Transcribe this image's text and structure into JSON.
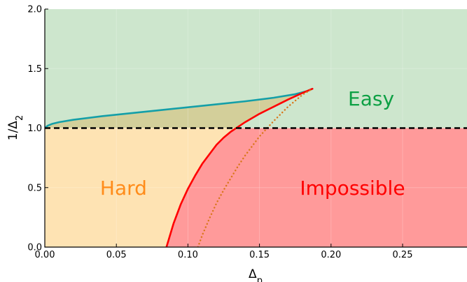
{
  "chart_data": {
    "type": "area",
    "title": "",
    "xlabel": "Δ",
    "xlabel_sub": "p",
    "ylabel": "1/Δ",
    "ylabel_sub": "2",
    "xlim": [
      0.0,
      0.295
    ],
    "ylim": [
      0.0,
      2.0
    ],
    "grid": true,
    "x_ticks": [
      0.0,
      0.05,
      0.1,
      0.15,
      0.2,
      0.25
    ],
    "x_tick_labels": [
      "0.00",
      "0.05",
      "0.10",
      "0.15",
      "0.20",
      "0.25"
    ],
    "y_ticks": [
      0.0,
      0.5,
      1.0,
      1.5,
      2.0
    ],
    "y_tick_labels": [
      "0.0",
      "0.5",
      "1.0",
      "1.5",
      "2.0"
    ],
    "regions": [
      {
        "name": "Easy",
        "color": "#0da044",
        "fill": "#cde6cd"
      },
      {
        "name": "Hard",
        "color": "#ff8c1a",
        "fill": "#fee3b3"
      },
      {
        "name": "Impossible",
        "color": "#ff0000",
        "fill": "#ff9a9a"
      }
    ],
    "overlap_fill": "#d3cf9a",
    "threshold_line": {
      "y": 1.0,
      "style": "dashed",
      "color": "#000000"
    },
    "series": [
      {
        "style": "solid",
        "color": "#149fa8",
        "x": [
          0.0,
          0.002,
          0.005,
          0.01,
          0.02,
          0.04,
          0.06,
          0.08,
          0.1,
          0.12,
          0.14,
          0.16,
          0.175,
          0.183,
          0.187
        ],
        "y": [
          1.0,
          1.02,
          1.035,
          1.05,
          1.07,
          1.1,
          1.125,
          1.15,
          1.175,
          1.2,
          1.225,
          1.255,
          1.285,
          1.31,
          1.33
        ]
      },
      {
        "style": "solid",
        "color": "#ff0000",
        "x": [
          0.085,
          0.09,
          0.095,
          0.1,
          0.105,
          0.11,
          0.115,
          0.12,
          0.125,
          0.13,
          0.135,
          0.14,
          0.15,
          0.16,
          0.17,
          0.18,
          0.187
        ],
        "y": [
          0.0,
          0.2,
          0.36,
          0.49,
          0.6,
          0.7,
          0.78,
          0.86,
          0.92,
          0.97,
          1.01,
          1.05,
          1.12,
          1.18,
          1.24,
          1.295,
          1.33
        ]
      },
      {
        "style": "dotted",
        "color": "#d9761a",
        "x": [
          0.107,
          0.11,
          0.115,
          0.12,
          0.125,
          0.13,
          0.135,
          0.14,
          0.145,
          0.15,
          0.16,
          0.17,
          0.18,
          0.187
        ],
        "y": [
          0.0,
          0.1,
          0.24,
          0.37,
          0.48,
          0.58,
          0.68,
          0.77,
          0.85,
          0.93,
          1.06,
          1.18,
          1.28,
          1.33
        ]
      }
    ],
    "annotations": [
      {
        "text": "Easy",
        "x": 0.228,
        "y": 1.25,
        "color": "#0da044"
      },
      {
        "text": "Hard",
        "x": 0.055,
        "y": 0.5,
        "color": "#ff8c1a"
      },
      {
        "text": "Impossible",
        "x": 0.215,
        "y": 0.5,
        "color": "#ff0000"
      }
    ]
  }
}
